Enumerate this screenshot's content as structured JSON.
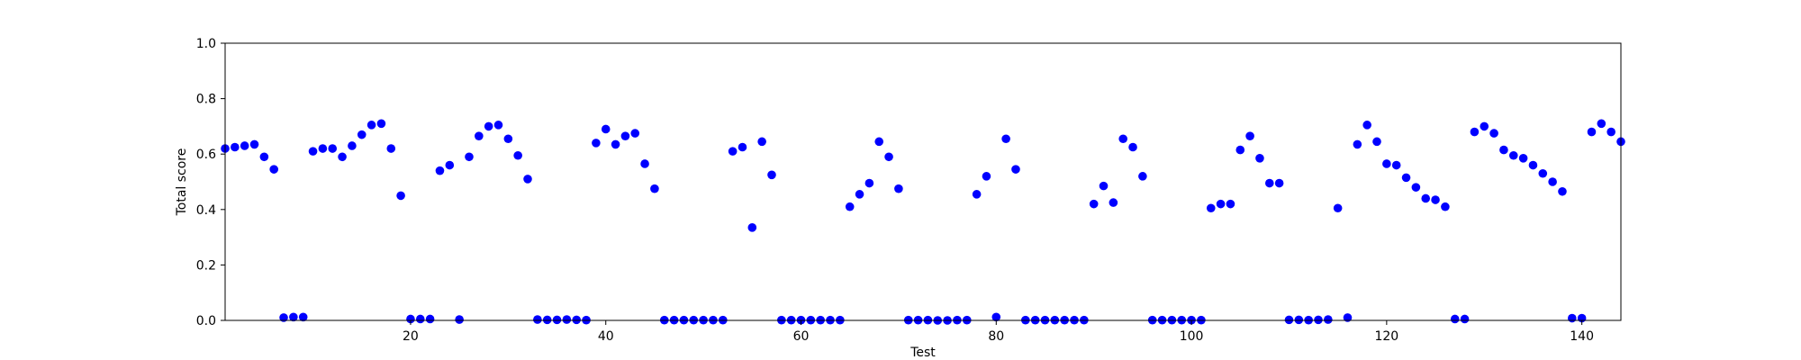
{
  "chart_data": {
    "type": "scatter",
    "title": "",
    "xlabel": "Test",
    "ylabel": "Total score",
    "xlim": [
      1,
      144
    ],
    "ylim": [
      0.0,
      1.0
    ],
    "xticks": [
      20,
      40,
      60,
      80,
      100,
      120,
      140
    ],
    "xtick_labels": [
      "20",
      "40",
      "60",
      "80",
      "100",
      "120",
      "140"
    ],
    "yticks": [
      0.0,
      0.2,
      0.4,
      0.6,
      0.8,
      1.0
    ],
    "ytick_labels": [
      "0.0",
      "0.2",
      "0.4",
      "0.6",
      "0.8",
      "1.0"
    ],
    "grid": false,
    "marker_color": "#0000ff",
    "series": [
      {
        "x": [
          1,
          2,
          3,
          4,
          5,
          6,
          7,
          8,
          9,
          10,
          11,
          12,
          13,
          14,
          15,
          16,
          17,
          18,
          19,
          20,
          21,
          22,
          23,
          24,
          25,
          26,
          27,
          28,
          29,
          30,
          31,
          32,
          33,
          34,
          35,
          36,
          37,
          38,
          39,
          40,
          41,
          42,
          43,
          44,
          45,
          46,
          47,
          48,
          49,
          50,
          51,
          52,
          53,
          54,
          55,
          56,
          57,
          58,
          59,
          60,
          61,
          62,
          63,
          64,
          65,
          66,
          67,
          68,
          69,
          70,
          71,
          72,
          73,
          74,
          75,
          76,
          77,
          78,
          79,
          80,
          81,
          82,
          83,
          84,
          85,
          86,
          87,
          88,
          89,
          90,
          91,
          92,
          93,
          94,
          95,
          96,
          97,
          98,
          99,
          100,
          101,
          102,
          103,
          104,
          105,
          106,
          107,
          108,
          109,
          110,
          111,
          112,
          113,
          114,
          115,
          116,
          117,
          118,
          119,
          120,
          121,
          122,
          123,
          124,
          125,
          126,
          127,
          128,
          129,
          130,
          131,
          132,
          133,
          134,
          135,
          136,
          137,
          138,
          139,
          140,
          141,
          142,
          143,
          144
        ],
        "y": [
          0.62,
          0.625,
          0.63,
          0.635,
          0.59,
          0.545,
          0.01,
          0.012,
          0.012,
          0.61,
          0.62,
          0.62,
          0.59,
          0.63,
          0.67,
          0.705,
          0.71,
          0.62,
          0.45,
          0.005,
          0.005,
          0.005,
          0.54,
          0.56,
          0.003,
          0.59,
          0.665,
          0.7,
          0.705,
          0.655,
          0.595,
          0.51,
          0.003,
          0.002,
          0.002,
          0.003,
          0.002,
          0.001,
          0.64,
          0.69,
          0.635,
          0.665,
          0.675,
          0.565,
          0.475,
          0.001,
          0.001,
          0.001,
          0.001,
          0.001,
          0.001,
          0.001,
          0.61,
          0.625,
          0.335,
          0.645,
          0.525,
          0.001,
          0.001,
          0.001,
          0.001,
          0.001,
          0.001,
          0.001,
          0.41,
          0.455,
          0.495,
          0.645,
          0.59,
          0.475,
          0.001,
          0.001,
          0.001,
          0.0,
          0.0,
          0.001,
          0.001,
          0.455,
          0.52,
          0.012,
          0.655,
          0.545,
          0.001,
          0.001,
          0.001,
          0.001,
          0.001,
          0.001,
          0.001,
          0.42,
          0.485,
          0.425,
          0.655,
          0.625,
          0.52,
          0.001,
          0.001,
          0.001,
          0.001,
          0.001,
          0.001,
          0.405,
          0.42,
          0.42,
          0.615,
          0.665,
          0.585,
          0.495,
          0.495,
          0.002,
          0.002,
          0.001,
          0.002,
          0.003,
          0.405,
          0.01,
          0.635,
          0.705,
          0.645,
          0.565,
          0.56,
          0.515,
          0.48,
          0.44,
          0.435,
          0.41,
          0.005,
          0.005,
          0.68,
          0.7,
          0.675,
          0.615,
          0.595,
          0.585,
          0.56,
          0.53,
          0.5,
          0.465,
          0.008,
          0.008,
          0.68,
          0.71,
          0.68,
          0.645
        ]
      }
    ]
  }
}
